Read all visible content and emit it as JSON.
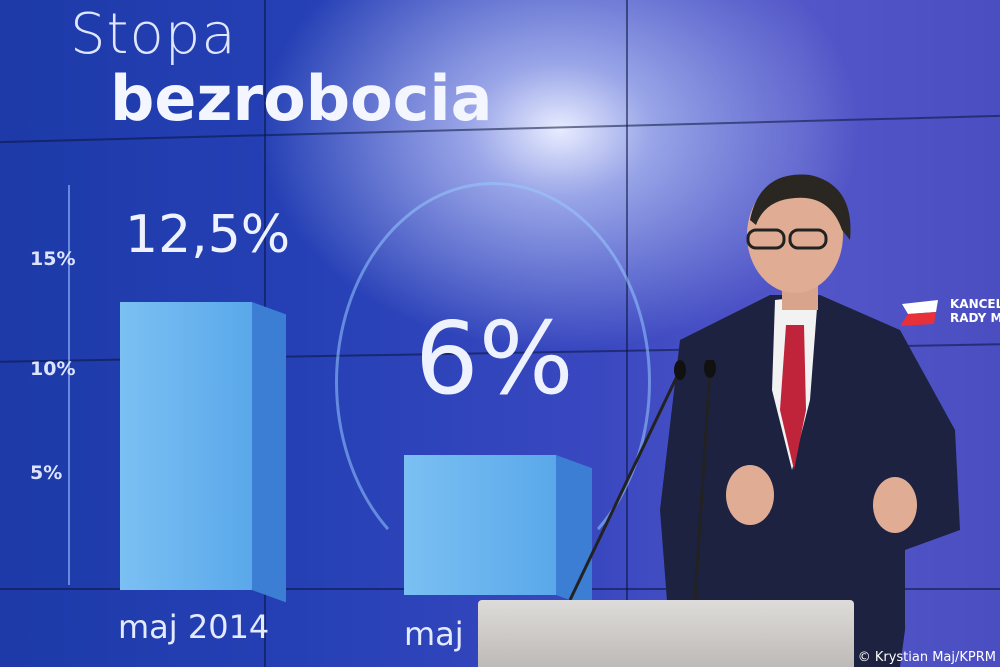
{
  "screen": {
    "title_line1": "Stopa",
    "title_line2": "bezrobocia",
    "y_ticks": [
      "15%",
      "10%",
      "5%"
    ],
    "bars": [
      {
        "label": "maj 2014",
        "value_label": "12,5%",
        "value": 12.5
      },
      {
        "label": "maj",
        "value_label": "6%",
        "value": 6
      }
    ],
    "logo_text_line1": "KANCELA",
    "logo_text_line2": "RADY MI",
    "logo_colors": [
      "#ffffff",
      "#e8303a"
    ]
  },
  "photo_credit": "© Krystian Maj/KPRM",
  "colors": {
    "screen_blue": "#2540b5",
    "bar": "#6cb4ee",
    "tie": "#c0243a",
    "suit": "#1c2240"
  }
}
